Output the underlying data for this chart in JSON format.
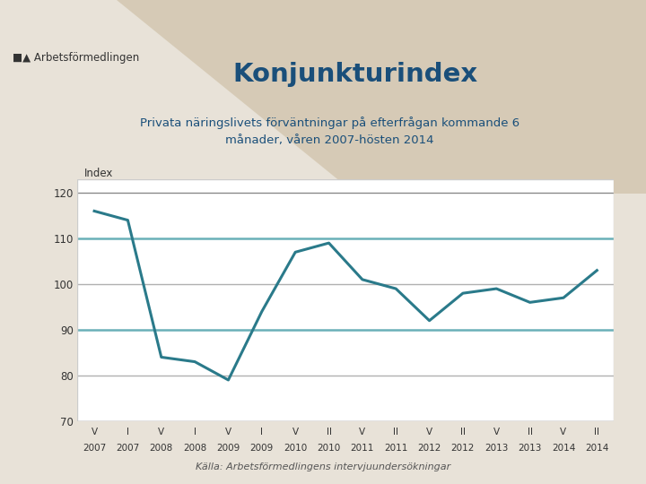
{
  "title": "Konjunkturindex",
  "subtitle": "Privata näringslivets förväntningar på efterfrågan kommande 6\nmånader, våren 2007-hösten 2014",
  "ylabel": "Index",
  "caption": "Källa: Arbetsförmedlingens intervjuundersökningar",
  "line_color": "#2a7a8a",
  "line_width": 2.2,
  "background_outer": "#e8e2d8",
  "background_chart": "#ffffff",
  "grid_color_teal": "#6ab0b8",
  "grid_color_gray": "#b0b0b0",
  "axis_color": "#888888",
  "title_color": "#1a4f7a",
  "subtitle_color": "#1a4f7a",
  "logo_color": "#333333",
  "ylim": [
    70,
    123
  ],
  "yticks": [
    70,
    80,
    90,
    100,
    110,
    120
  ],
  "grid_teal_at": [
    90,
    110
  ],
  "grid_gray_at": [
    80,
    100,
    120
  ],
  "x_labels_top": [
    "V",
    "I",
    "V",
    "I",
    "V",
    "I",
    "V",
    "II",
    "V",
    "II",
    "V",
    "II",
    "V",
    "II",
    "V",
    "II"
  ],
  "x_labels_bottom": [
    "2007",
    "2007",
    "2008",
    "2008",
    "2009",
    "2009",
    "2010",
    "2010",
    "2011",
    "2011",
    "2012",
    "2012",
    "2013",
    "2013",
    "2014",
    "2014"
  ],
  "y_values": [
    116,
    114,
    84,
    83,
    79,
    94,
    107,
    109,
    101,
    99,
    92,
    98,
    99,
    96,
    97,
    103
  ],
  "tan_bg_color": "#c8b89a",
  "chart_border_color": "#cccccc"
}
